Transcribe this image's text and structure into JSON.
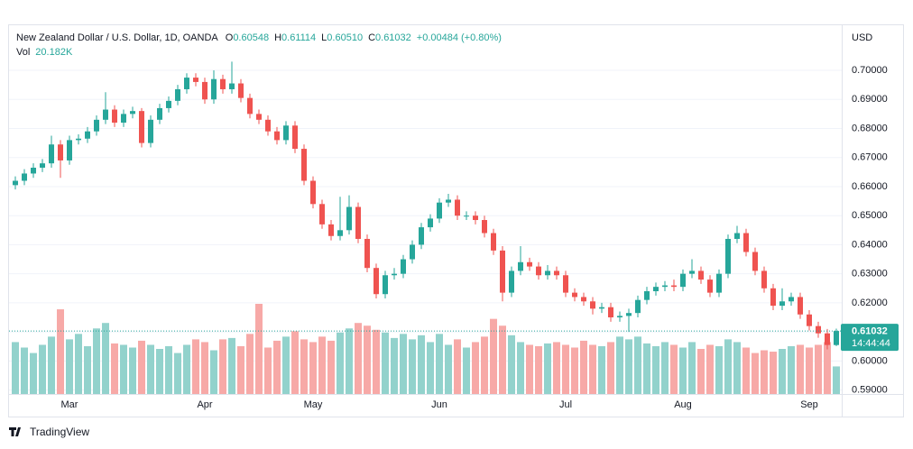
{
  "chart_data": {
    "type": "candlestick",
    "title": "New Zealand Dollar / U.S. Dollar, 1D, OANDA",
    "header_values": [
      {
        "key": "O",
        "text": "0.60548"
      },
      {
        "key": "H",
        "text": "0.61114"
      },
      {
        "key": "L",
        "text": "0.60510"
      },
      {
        "key": "C",
        "text": "0.61032"
      }
    ],
    "change": "+0.00484 (+0.80%)",
    "currency": "USD",
    "countdown": "14:44:44",
    "brand": "TradingView",
    "up_color": "#26a69a",
    "down_color": "#ef5350",
    "volume_up_color": "#92d2cc",
    "volume_down_color": "#f7a9a7",
    "grid": true,
    "categories": [
      null,
      null,
      null,
      null,
      null,
      null,
      "Mar",
      null,
      null,
      null,
      null,
      null,
      null,
      null,
      null,
      null,
      null,
      null,
      null,
      null,
      null,
      "Apr",
      null,
      null,
      null,
      null,
      null,
      null,
      null,
      null,
      null,
      null,
      null,
      "May",
      null,
      null,
      null,
      null,
      null,
      null,
      null,
      null,
      null,
      null,
      null,
      null,
      null,
      "Jun",
      null,
      null,
      null,
      null,
      null,
      null,
      null,
      null,
      null,
      null,
      null,
      null,
      null,
      "Jul",
      null,
      null,
      null,
      null,
      null,
      null,
      null,
      null,
      null,
      null,
      null,
      null,
      "Aug",
      null,
      null,
      null,
      null,
      null,
      null,
      null,
      null,
      null,
      null,
      null,
      null,
      null,
      "Sep",
      null,
      null,
      null
    ],
    "open": [
      0.6605,
      0.662,
      0.6645,
      0.6665,
      0.668,
      0.6745,
      0.669,
      0.676,
      0.6765,
      0.679,
      0.683,
      0.6865,
      0.682,
      0.685,
      0.686,
      0.675,
      0.683,
      0.687,
      0.6895,
      0.6935,
      0.6975,
      0.696,
      0.69,
      0.697,
      0.6935,
      0.6955,
      0.6905,
      0.685,
      0.683,
      0.679,
      0.676,
      0.681,
      0.673,
      0.662,
      0.654,
      0.647,
      0.643,
      0.645,
      0.653,
      0.642,
      0.632,
      0.623,
      0.6295,
      0.63,
      0.635,
      0.64,
      0.646,
      0.649,
      0.6545,
      0.6555,
      0.65,
      0.65,
      0.6485,
      0.644,
      0.638,
      0.6235,
      0.631,
      0.634,
      0.6325,
      0.6295,
      0.631,
      0.6295,
      0.6235,
      0.622,
      0.6205,
      0.618,
      0.6185,
      0.615,
      0.6155,
      0.6165,
      0.621,
      0.624,
      0.6255,
      0.626,
      0.6255,
      0.63,
      0.631,
      0.628,
      0.6235,
      0.63,
      0.642,
      0.644,
      0.6375,
      0.631,
      0.625,
      0.619,
      0.6205,
      0.622,
      0.616,
      0.612,
      0.6095,
      0.60548
    ],
    "high": [
      0.6635,
      0.666,
      0.668,
      0.6695,
      0.6775,
      0.676,
      0.6775,
      0.678,
      0.6805,
      0.6845,
      0.6925,
      0.688,
      0.6865,
      0.6875,
      0.687,
      0.6845,
      0.6885,
      0.691,
      0.695,
      0.699,
      0.699,
      0.6975,
      0.7,
      0.6985,
      0.703,
      0.697,
      0.692,
      0.6865,
      0.6845,
      0.6805,
      0.6825,
      0.6825,
      0.6745,
      0.6635,
      0.6555,
      0.6485,
      0.6565,
      0.657,
      0.6545,
      0.6435,
      0.6335,
      0.631,
      0.632,
      0.6365,
      0.6415,
      0.6475,
      0.6505,
      0.656,
      0.6575,
      0.657,
      0.6515,
      0.6515,
      0.65,
      0.6455,
      0.6395,
      0.6325,
      0.6395,
      0.6355,
      0.634,
      0.633,
      0.6325,
      0.631,
      0.625,
      0.6235,
      0.622,
      0.62,
      0.62,
      0.617,
      0.618,
      0.6225,
      0.6255,
      0.627,
      0.6275,
      0.628,
      0.6315,
      0.635,
      0.6325,
      0.6295,
      0.6315,
      0.6435,
      0.6465,
      0.6455,
      0.639,
      0.6325,
      0.6265,
      0.625,
      0.6235,
      0.6235,
      0.6175,
      0.6135,
      0.611,
      0.61114
    ],
    "low": [
      0.659,
      0.6605,
      0.663,
      0.665,
      0.6665,
      0.663,
      0.6675,
      0.6745,
      0.675,
      0.6775,
      0.6815,
      0.6805,
      0.6805,
      0.6835,
      0.6735,
      0.6735,
      0.6815,
      0.6855,
      0.688,
      0.692,
      0.6945,
      0.6885,
      0.6885,
      0.692,
      0.692,
      0.689,
      0.6835,
      0.6815,
      0.6775,
      0.6745,
      0.6745,
      0.6715,
      0.6605,
      0.6525,
      0.6455,
      0.6415,
      0.6415,
      0.6435,
      0.6405,
      0.6305,
      0.6215,
      0.6215,
      0.628,
      0.6285,
      0.6335,
      0.6385,
      0.6445,
      0.6475,
      0.653,
      0.6485,
      0.6485,
      0.647,
      0.6425,
      0.6365,
      0.6205,
      0.622,
      0.6295,
      0.631,
      0.628,
      0.628,
      0.628,
      0.622,
      0.6205,
      0.619,
      0.616,
      0.6165,
      0.6135,
      0.6135,
      0.61,
      0.615,
      0.6195,
      0.6225,
      0.624,
      0.624,
      0.624,
      0.6285,
      0.6265,
      0.622,
      0.622,
      0.6285,
      0.6405,
      0.636,
      0.6295,
      0.6235,
      0.6175,
      0.6175,
      0.619,
      0.6145,
      0.6105,
      0.608,
      0.604,
      0.6051
    ],
    "close": [
      0.662,
      0.6645,
      0.6665,
      0.668,
      0.6745,
      0.669,
      0.676,
      0.6765,
      0.679,
      0.683,
      0.6865,
      0.682,
      0.685,
      0.686,
      0.675,
      0.683,
      0.687,
      0.6895,
      0.6935,
      0.6975,
      0.696,
      0.69,
      0.697,
      0.6935,
      0.6955,
      0.6905,
      0.685,
      0.683,
      0.679,
      0.676,
      0.681,
      0.673,
      0.662,
      0.654,
      0.647,
      0.643,
      0.645,
      0.653,
      0.642,
      0.632,
      0.623,
      0.6295,
      0.63,
      0.635,
      0.64,
      0.646,
      0.649,
      0.6545,
      0.6555,
      0.65,
      0.65,
      0.6485,
      0.644,
      0.638,
      0.6235,
      0.631,
      0.634,
      0.6325,
      0.6295,
      0.631,
      0.6295,
      0.6235,
      0.622,
      0.6205,
      0.618,
      0.6185,
      0.615,
      0.6155,
      0.6165,
      0.621,
      0.624,
      0.6255,
      0.626,
      0.6255,
      0.63,
      0.631,
      0.628,
      0.6235,
      0.63,
      0.642,
      0.644,
      0.6375,
      0.631,
      0.625,
      0.619,
      0.6205,
      0.622,
      0.616,
      0.612,
      0.6095,
      0.6055,
      0.61032
    ],
    "volume": {
      "name": "Vol",
      "last_label": "20.182K",
      "values": [
        38000,
        34000,
        30000,
        36000,
        42000,
        62000,
        40000,
        44000,
        35000,
        48000,
        52000,
        37000,
        36000,
        34000,
        39000,
        36000,
        33000,
        35000,
        30000,
        36000,
        40000,
        38000,
        32000,
        40000,
        41000,
        35000,
        44000,
        66000,
        34000,
        39000,
        42000,
        46000,
        40000,
        38000,
        42000,
        39000,
        45000,
        48000,
        52000,
        50000,
        47000,
        45000,
        41000,
        44000,
        40000,
        43000,
        38000,
        44000,
        36000,
        40000,
        34000,
        38000,
        42000,
        55000,
        50000,
        43000,
        38000,
        36000,
        35000,
        37000,
        38000,
        36000,
        34000,
        39000,
        36000,
        35000,
        38000,
        42000,
        40000,
        42000,
        37000,
        35000,
        38000,
        36000,
        34000,
        38000,
        33000,
        36000,
        35000,
        40000,
        38000,
        34000,
        30000,
        32000,
        31000,
        33000,
        35000,
        36000,
        34000,
        36000,
        38000,
        20182
      ]
    },
    "ylim": [
      0.5877,
      0.7149
    ],
    "yticks": [
      {
        "value": 0.59,
        "label": "0.59000"
      },
      {
        "value": 0.6,
        "label": "0.60000"
      },
      {
        "value": 0.61,
        "label": "0.61000"
      },
      {
        "value": 0.62,
        "label": "0.62000"
      },
      {
        "value": 0.63,
        "label": "0.63000"
      },
      {
        "value": 0.64,
        "label": "0.64000"
      },
      {
        "value": 0.65,
        "label": "0.65000"
      },
      {
        "value": 0.66,
        "label": "0.66000"
      },
      {
        "value": 0.67,
        "label": "0.67000"
      },
      {
        "value": 0.68,
        "label": "0.68000"
      },
      {
        "value": 0.69,
        "label": "0.69000"
      },
      {
        "value": 0.7,
        "label": "0.70000"
      }
    ]
  }
}
